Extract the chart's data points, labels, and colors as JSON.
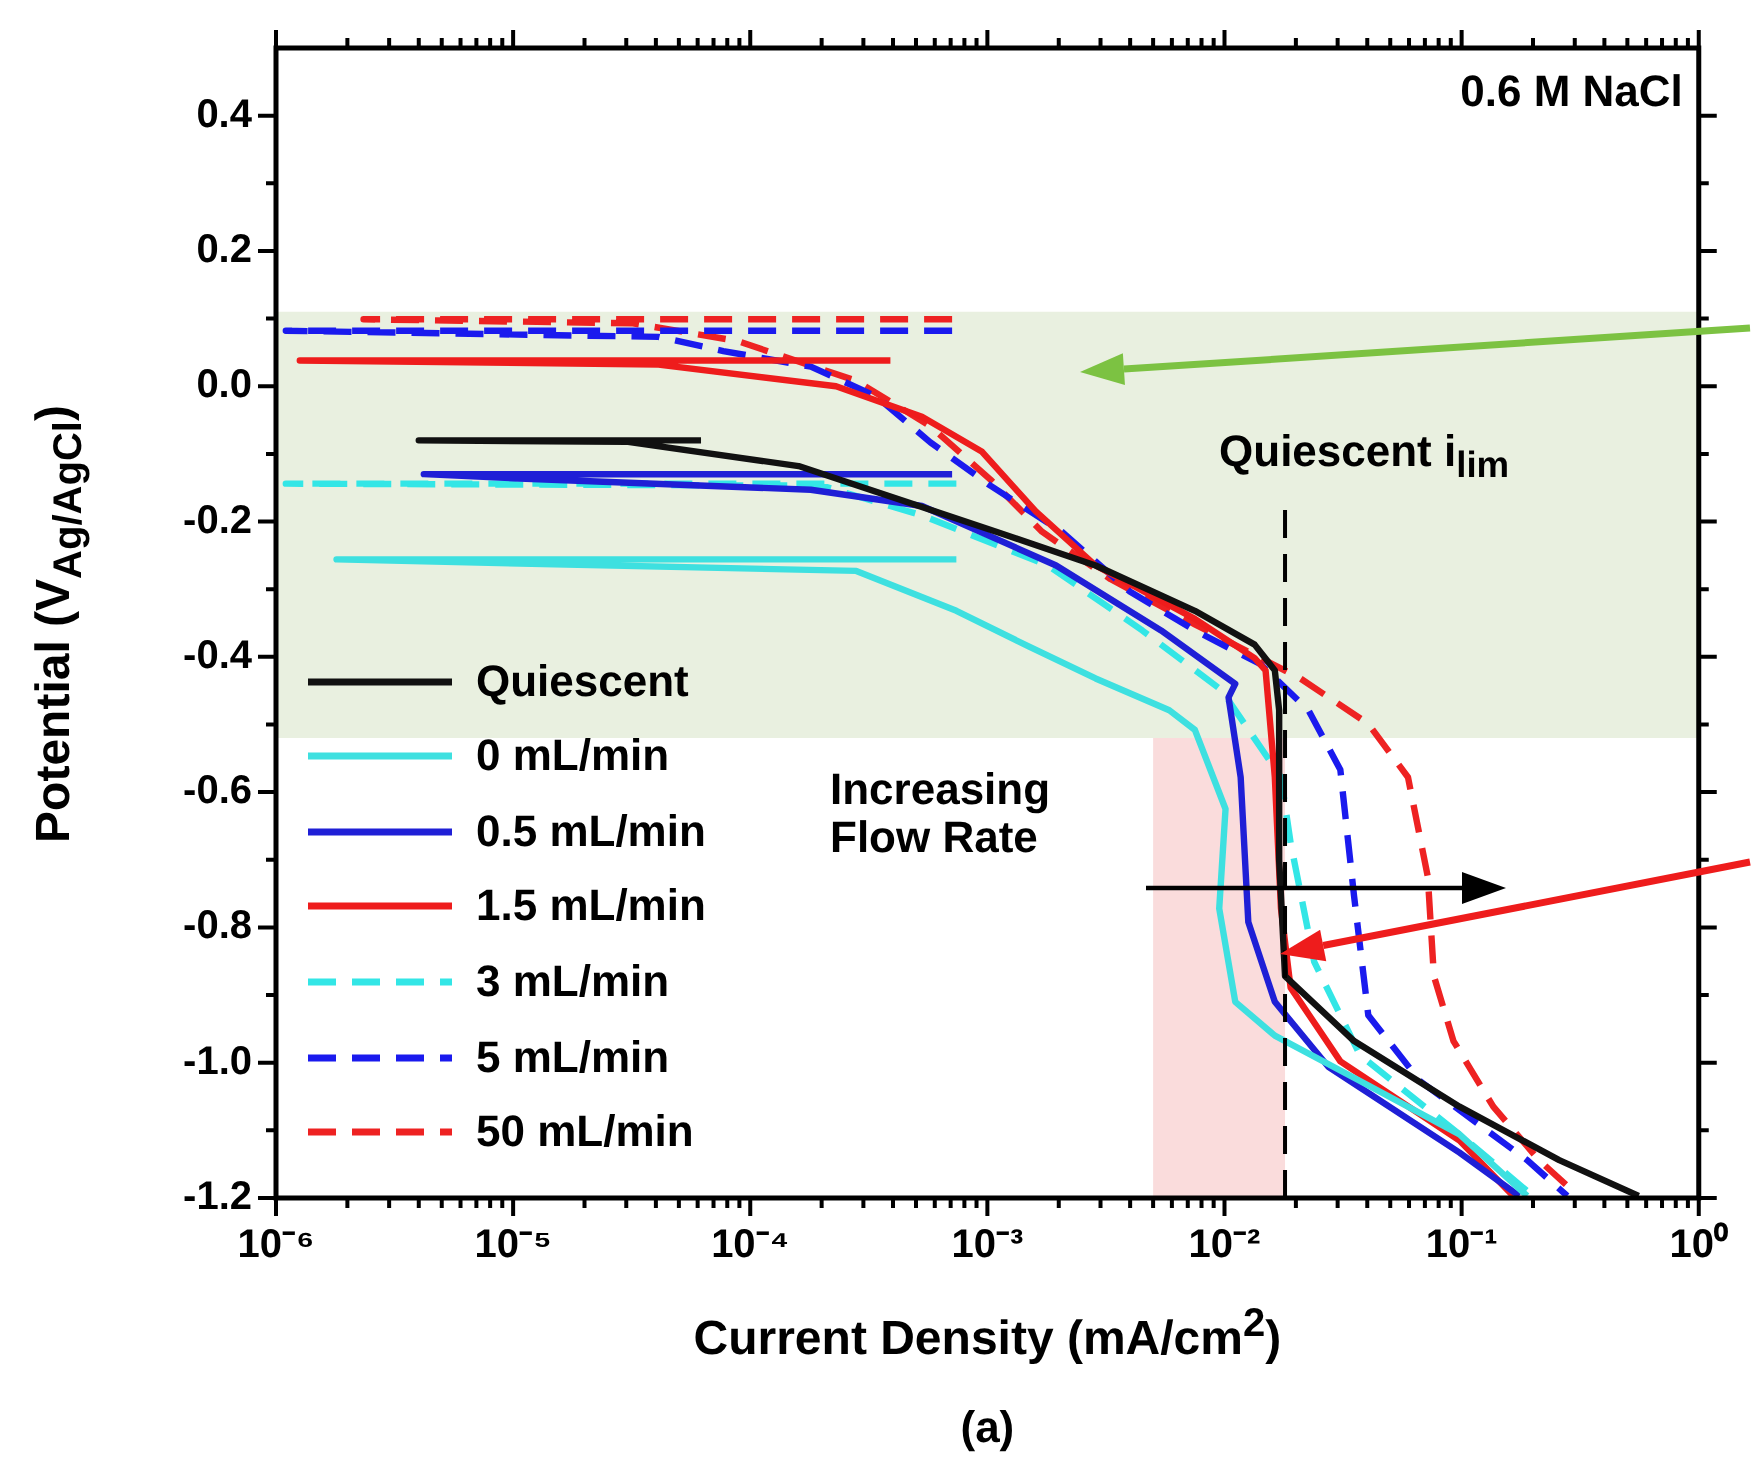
{
  "chart_data": {
    "type": "line",
    "xlabel": "Current Density (mA/cm$^{2}$)",
    "ylabel": "Potential (V$_{Ag/AgCl}$)",
    "annotations": [
      "0.6 M NaCl",
      "Increasing Flow Rate",
      "(a)"
    ],
    "log": "x",
    "grid": false,
    "legend": "bottom left",
    "marker": "none",
    "xlim": [
      1e-06,
      1
    ],
    "xticks": [
      {
        "value": 1e-06,
        "label": "10⁻⁶"
      },
      {
        "value": 2e-06,
        "label": null
      },
      {
        "value": 3e-06,
        "label": null
      },
      {
        "value": 4e-06,
        "label": null
      },
      {
        "value": 5e-06,
        "label": null
      },
      {
        "value": 6e-06,
        "label": null
      },
      {
        "value": 7e-06,
        "label": null
      },
      {
        "value": 8e-06,
        "label": null
      },
      {
        "value": 9e-06,
        "label": null
      },
      {
        "value": 1e-05,
        "label": "10⁻⁵"
      },
      {
        "value": 2e-05,
        "label": null
      },
      {
        "value": 3e-05,
        "label": null
      },
      {
        "value": 4e-05,
        "label": null
      },
      {
        "value": 5e-05,
        "label": null
      },
      {
        "value": 6e-05,
        "label": null
      },
      {
        "value": 7e-05,
        "label": null
      },
      {
        "value": 8e-05,
        "label": null
      },
      {
        "value": 9e-05,
        "label": null
      },
      {
        "value": 0.0001,
        "label": "10⁻⁴"
      },
      {
        "value": 0.0002,
        "label": null
      },
      {
        "value": 0.0003,
        "label": null
      },
      {
        "value": 0.0004,
        "label": null
      },
      {
        "value": 0.0005,
        "label": null
      },
      {
        "value": 0.0006,
        "label": null
      },
      {
        "value": 0.0007,
        "label": null
      },
      {
        "value": 0.0008,
        "label": null
      },
      {
        "value": 0.0009,
        "label": null
      },
      {
        "value": 0.001,
        "label": "10⁻³"
      },
      {
        "value": 0.002,
        "label": null
      },
      {
        "value": 0.003,
        "label": null
      },
      {
        "value": 0.004,
        "label": null
      },
      {
        "value": 0.005,
        "label": null
      },
      {
        "value": 0.006,
        "label": null
      },
      {
        "value": 0.007,
        "label": null
      },
      {
        "value": 0.008,
        "label": null
      },
      {
        "value": 0.009,
        "label": null
      },
      {
        "value": 0.01,
        "label": "10⁻²"
      },
      {
        "value": 0.02,
        "label": null
      },
      {
        "value": 0.03,
        "label": null
      },
      {
        "value": 0.04,
        "label": null
      },
      {
        "value": 0.05,
        "label": null
      },
      {
        "value": 0.06,
        "label": null
      },
      {
        "value": 0.07,
        "label": null
      },
      {
        "value": 0.08,
        "label": null
      },
      {
        "value": 0.09,
        "label": null
      },
      {
        "value": 0.1,
        "label": "10⁻¹"
      },
      {
        "value": 0.2,
        "label": null
      },
      {
        "value": 0.3,
        "label": null
      },
      {
        "value": 0.4,
        "label": null
      },
      {
        "value": 0.5,
        "label": null
      },
      {
        "value": 0.6,
        "label": null
      },
      {
        "value": 0.7,
        "label": null
      },
      {
        "value": 0.8,
        "label": null
      },
      {
        "value": 0.9,
        "label": null
      },
      {
        "value": 1,
        "label": "10⁰"
      }
    ],
    "ylim": [
      -1.2,
      0.5
    ],
    "yticks": [
      -1.2,
      {
        "value": -1.1,
        "label": null
      },
      {
        "value": -1.0,
        "label": "-1.0"
      },
      {
        "value": -0.9,
        "label": null
      },
      -0.8,
      {
        "value": -0.7,
        "label": null
      },
      -0.6,
      {
        "value": -0.5,
        "label": null
      },
      -0.4,
      {
        "value": -0.3,
        "label": null
      },
      -0.2,
      {
        "value": -0.1,
        "label": null
      },
      {
        "value": 0,
        "label": "0.0"
      },
      {
        "value": 0.1,
        "label": null
      },
      0.2,
      {
        "value": 0.3,
        "label": null
      },
      0.4
    ],
    "bands": [
      {
        "axis": "y",
        "from": -0.52,
        "to": 0.11,
        "color": "#e9f0e0"
      },
      {
        "axis": "x",
        "from": 0.005,
        "to": 0.018,
        "color": "#fadcdc"
      }
    ],
    "ref_lines": [
      {
        "axis": "x",
        "value": 0.018,
        "label": "Quiescent i$_{lim}$",
        "color": "#000000",
        "line_style": "dashed"
      }
    ],
    "series": [
      {
        "name": "Quiescent",
        "color": "#111111",
        "line_style": "solid",
        "x": [
          6.2e-05,
          4e-06,
          3e-05,
          0.00016,
          0.00109,
          0.00286,
          0.0075,
          0.0134,
          0.0163,
          0.017,
          0.017,
          0.018,
          0.0352,
          0.098,
          0.258,
          0.558
        ],
        "values": [
          -0.08,
          -0.08,
          -0.082,
          -0.118,
          -0.215,
          -0.265,
          -0.332,
          -0.382,
          -0.42,
          -0.479,
          -0.7,
          -0.872,
          -0.968,
          -1.065,
          -1.144,
          -1.197
        ]
      },
      {
        "name": "0 mL/min",
        "color": "#3ee0e0",
        "line_style": "solid",
        "x": [
          0.00074,
          1.8e-06,
          0.00028,
          0.00074,
          0.0015,
          0.00286,
          0.00585,
          0.0075,
          0.0101,
          0.0095,
          0.0111,
          0.0163,
          0.0373,
          0.098,
          0.189
        ],
        "values": [
          -0.256,
          -0.256,
          -0.273,
          -0.332,
          -0.385,
          -0.432,
          -0.479,
          -0.508,
          -0.625,
          -0.772,
          -0.91,
          -0.96,
          -1.027,
          -1.106,
          -1.197
        ]
      },
      {
        "name": "0.5 mL/min",
        "color": "#1f1fd6",
        "line_style": "solid",
        "x": [
          0.00071,
          4.2e-06,
          1e-05,
          0.00018,
          0.00053,
          0.00195,
          0.0054,
          0.0111,
          0.0104,
          0.0117,
          0.0126,
          0.0163,
          0.0274,
          0.098,
          0.175
        ],
        "values": [
          -0.13,
          -0.13,
          -0.136,
          -0.153,
          -0.177,
          -0.265,
          -0.361,
          -0.44,
          -0.46,
          -0.578,
          -0.792,
          -0.91,
          -1.006,
          -1.133,
          -1.197
        ]
      },
      {
        "name": "1.5 mL/min",
        "color": "#ee1c1c",
        "line_style": "solid",
        "x": [
          0.00039,
          1.26e-06,
          4.1e-05,
          0.00023,
          0.00053,
          0.00095,
          0.0016,
          0.00286,
          0.0075,
          0.0134,
          0.0149,
          0.0163,
          0.0173,
          0.019,
          0.0308,
          0.098,
          0.165
        ],
        "values": [
          0.038,
          0.038,
          0.032,
          0.0,
          -0.045,
          -0.097,
          -0.185,
          -0.265,
          -0.344,
          -0.402,
          -0.42,
          -0.578,
          -0.772,
          -0.889,
          -0.998,
          -1.115,
          -1.197
        ]
      },
      {
        "name": "3 mL/min",
        "color": "#33e6e6",
        "line_style": "dashed",
        "x": [
          0.00074,
          1.1e-06,
          0.0002,
          0.00053,
          0.0018,
          0.0045,
          0.0097,
          0.0173,
          0.019,
          0.0239,
          0.0373,
          0.098,
          0.2
        ],
        "values": [
          -0.144,
          -0.144,
          -0.147,
          -0.191,
          -0.265,
          -0.361,
          -0.449,
          -0.578,
          -0.675,
          -0.851,
          -0.989,
          -1.106,
          -1.197
        ]
      },
      {
        "name": "5 mL/min",
        "color": "#1a1aee",
        "line_style": "dashed",
        "x": [
          0.00071,
          1.1e-06,
          4.1e-05,
          7.7e-05,
          0.00018,
          0.00034,
          0.000575,
          0.00103,
          0.00206,
          0.00397,
          0.0075,
          0.0142,
          0.0226,
          0.0308,
          0.0352,
          0.0404,
          0.0667,
          0.189,
          0.279
        ],
        "values": [
          0.082,
          0.082,
          0.073,
          0.052,
          0.029,
          -0.015,
          -0.083,
          -0.147,
          -0.215,
          -0.303,
          -0.361,
          -0.411,
          -0.479,
          -0.567,
          -0.754,
          -0.93,
          -1.027,
          -1.144,
          -1.197
        ]
      },
      {
        "name": "50 mL/min",
        "color": "#ee2222",
        "line_style": "dashed",
        "x": [
          0.00071,
          2.34e-06,
          3.2e-05,
          8.8e-05,
          0.00028,
          0.000575,
          0.00103,
          0.0017,
          0.0033,
          0.0075,
          0.0209,
          0.0404,
          0.0594,
          0.072,
          0.0764,
          0.0924,
          0.136,
          0.212,
          0.279
        ],
        "values": [
          0.099,
          0.099,
          0.093,
          0.067,
          0.008,
          -0.059,
          -0.138,
          -0.215,
          -0.285,
          -0.352,
          -0.432,
          -0.499,
          -0.578,
          -0.725,
          -0.872,
          -0.968,
          -1.065,
          -1.144,
          -1.182
        ]
      }
    ]
  }
}
